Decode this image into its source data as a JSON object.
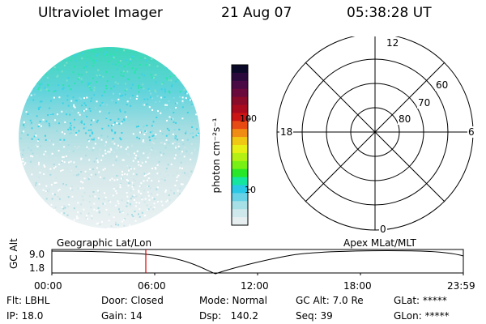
{
  "header": {
    "instrument": "Ultraviolet Imager",
    "date": "21 Aug 07",
    "time": "05:38:28 UT"
  },
  "polar_plot": {
    "mlt_labels": {
      "top": "12",
      "bottom": "0",
      "left": "18",
      "right": "6"
    },
    "lat_labels": [
      "60",
      "70",
      "80"
    ]
  },
  "colorbar": {
    "unit_label": "photon cm⁻²s⁻¹",
    "tick_labels": [
      "100",
      "10"
    ],
    "colors": [
      "#0a0a28",
      "#2a0a3c",
      "#4a0a46",
      "#6a0a3c",
      "#8a0a2a",
      "#aa0a1e",
      "#cc1414",
      "#e84a14",
      "#f08c14",
      "#f0c814",
      "#e6f014",
      "#b4f014",
      "#78f014",
      "#28e628",
      "#14e6a0",
      "#28c8e6",
      "#6ad2e6",
      "#a6e0e6",
      "#cfe8ec",
      "#e6eef0"
    ]
  },
  "timeline": {
    "axis_label": "GC Alt",
    "y_ticks": [
      "9.0",
      "1.8"
    ],
    "left_label": "Geographic Lat/Lon",
    "right_label": "Apex MLat/MLT",
    "x_ticks": [
      "00:00",
      "06:00",
      "12:00",
      "18:00",
      "23:59"
    ],
    "marker_time": "05:38",
    "marker_color": "#dd0000"
  },
  "info": {
    "row1": [
      "Flt: LBHL",
      "Door: Closed",
      "Mode: Normal",
      "GC Alt: 7.0 Re",
      "GLat: *****"
    ],
    "row2": [
      "IP: 18.0",
      "Gain: 14",
      "Dsp:   140.2",
      "Seq: 39",
      "GLon: *****"
    ]
  }
}
